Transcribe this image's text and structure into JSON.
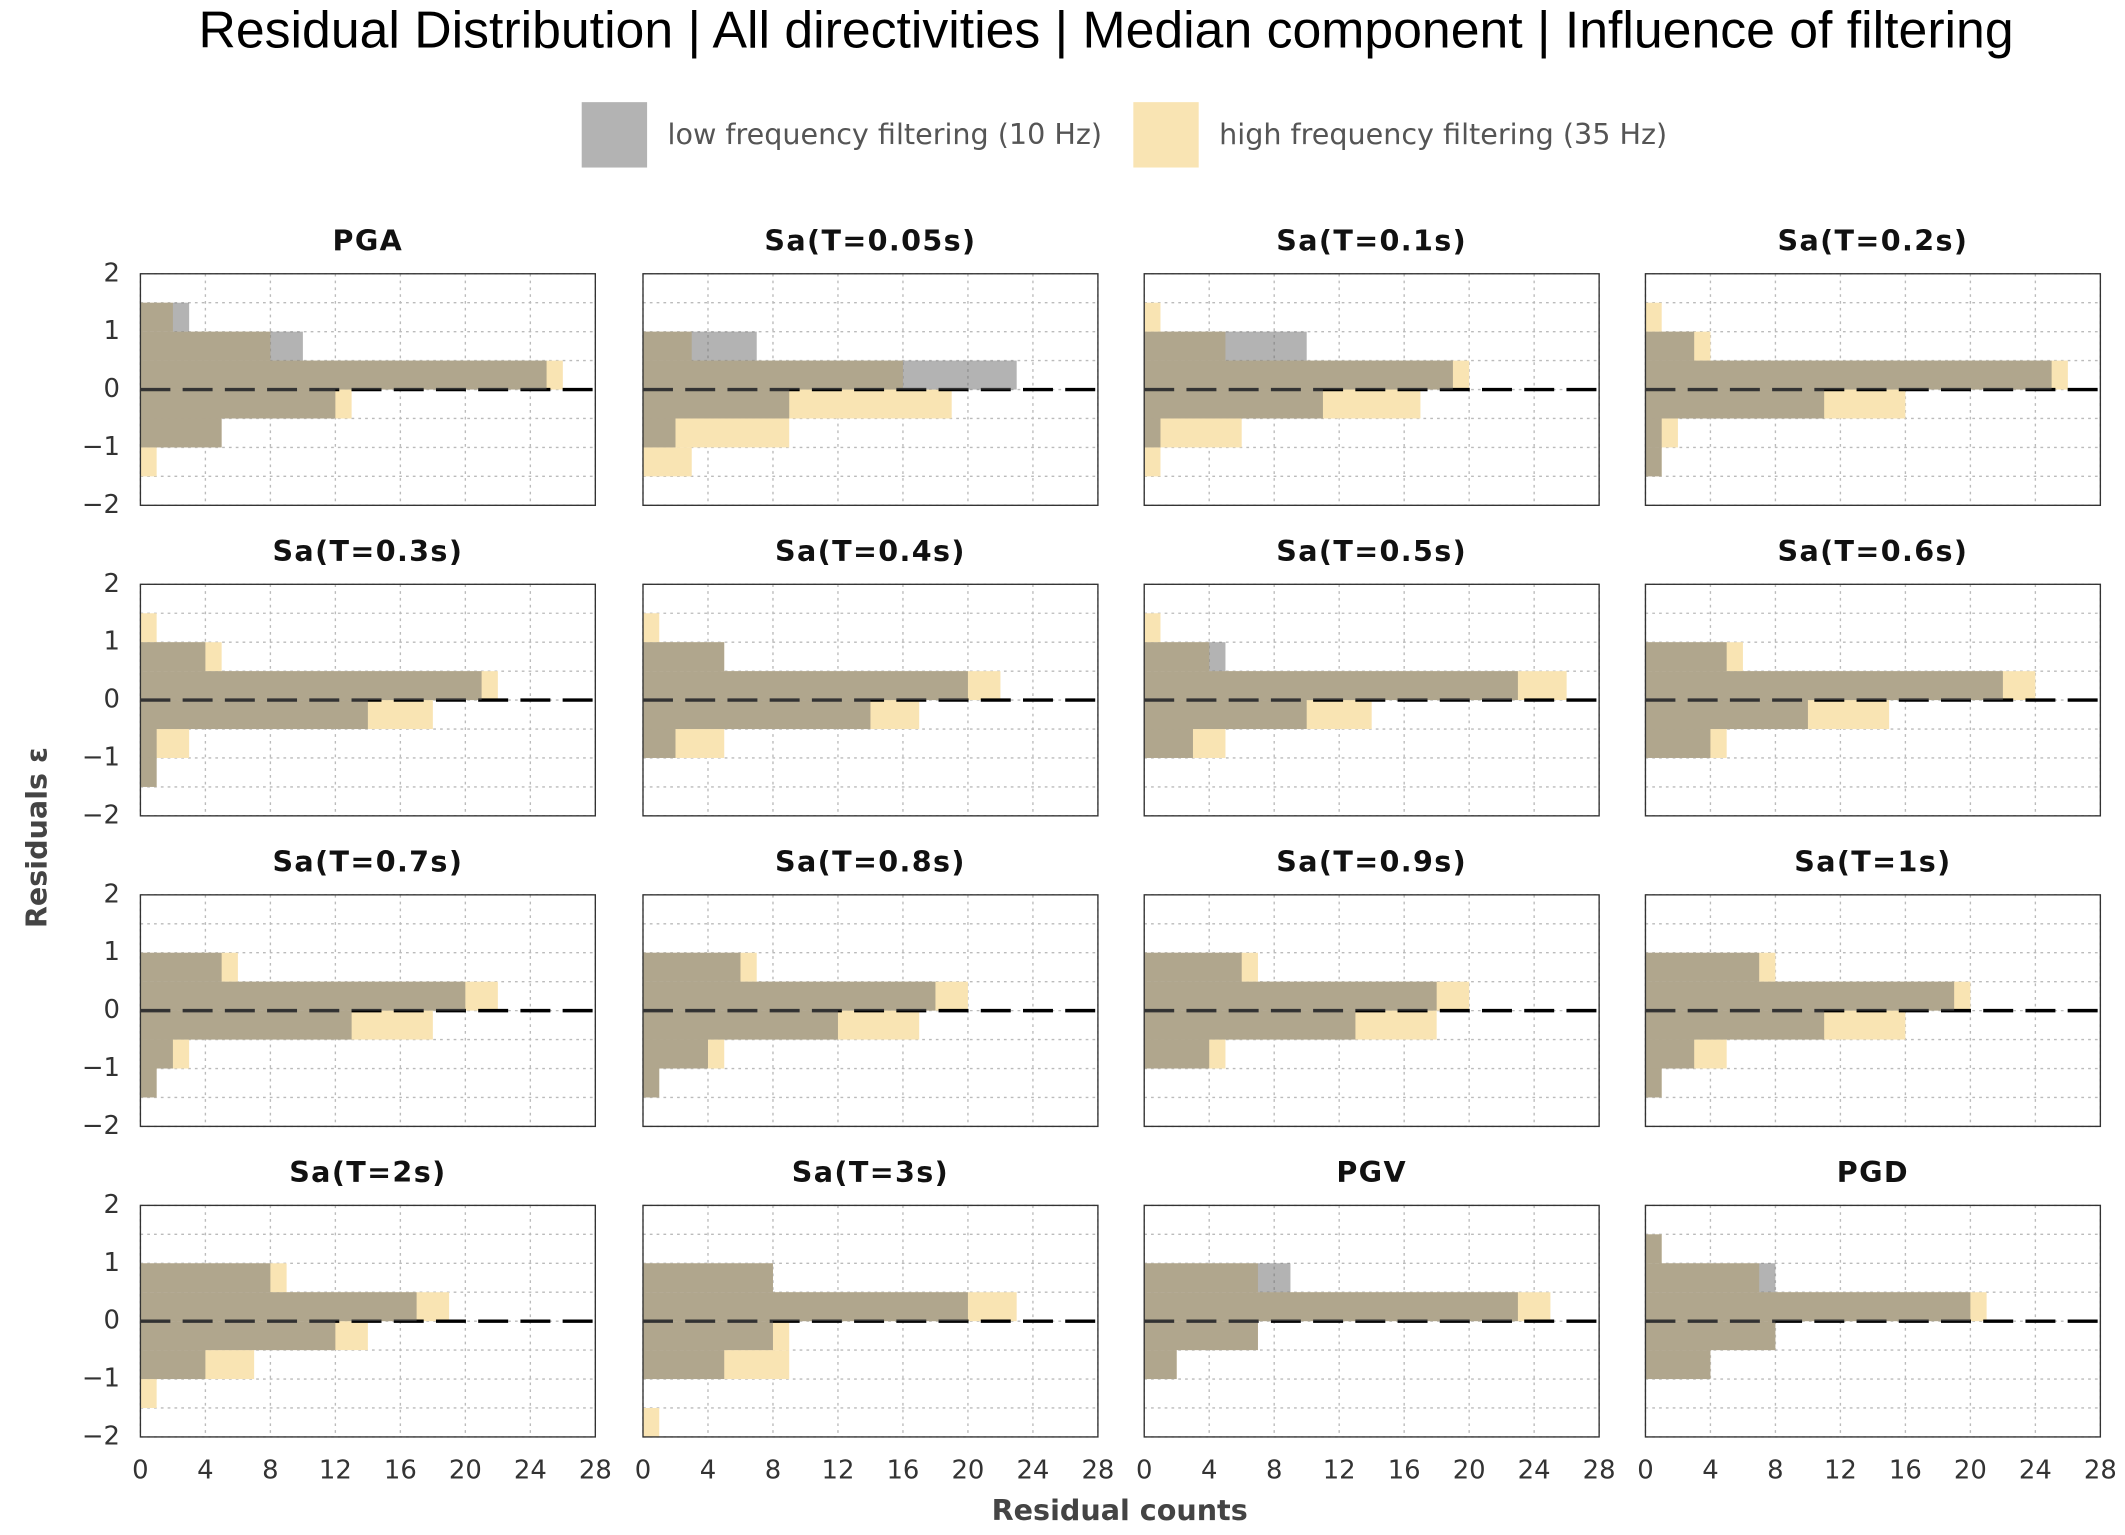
{
  "chart_data": {
    "type": "bar",
    "orientation": "horizontal",
    "title": "Residual Distribution | All directivities | Median component | Influence of filtering",
    "x_label": "Residual counts",
    "y_label": "Residuals  ε",
    "series": [
      {
        "name": "low frequency filtering (10 Hz)",
        "color": "#676767",
        "opacity": 0.5
      },
      {
        "name": "high frequency filtering (35 Hz)",
        "color": "#f9e4b3",
        "opacity": 1
      }
    ],
    "bins": [
      -2,
      -1.5,
      -1,
      -0.5,
      0,
      0.5,
      1,
      1.5,
      2
    ],
    "xlim": [
      0,
      28
    ],
    "xticks": [
      0,
      4,
      8,
      12,
      16,
      20,
      24,
      28
    ],
    "ylim": [
      -2,
      2
    ],
    "yticks": [
      {
        "value": 2,
        "label": "2"
      },
      {
        "value": 1,
        "label": "1"
      },
      {
        "value": 0,
        "label": "0"
      },
      {
        "value": -1,
        "label": "−1"
      },
      {
        "value": -2,
        "label": "−2"
      }
    ],
    "reference_line": 0,
    "grid": true,
    "panels": [
      {
        "title": "PGA",
        "series": [
          {
            "values": [
              0,
              0,
              5,
              12,
              25,
              10,
              3,
              0
            ]
          },
          {
            "values": [
              0,
              1,
              5,
              13,
              26,
              8,
              2,
              0
            ]
          }
        ]
      },
      {
        "title": "Sa(T=0.05s)",
        "series": [
          {
            "values": [
              0,
              0,
              2,
              9,
              23,
              7,
              0,
              0
            ]
          },
          {
            "values": [
              0,
              3,
              9,
              19,
              16,
              3,
              0,
              0
            ]
          }
        ]
      },
      {
        "title": "Sa(T=0.1s)",
        "series": [
          {
            "values": [
              0,
              0,
              1,
              11,
              19,
              10,
              0,
              0
            ]
          },
          {
            "values": [
              0,
              1,
              6,
              17,
              20,
              5,
              1,
              0
            ]
          }
        ]
      },
      {
        "title": "Sa(T=0.2s)",
        "series": [
          {
            "values": [
              0,
              1,
              1,
              11,
              25,
              3,
              0,
              0
            ]
          },
          {
            "values": [
              0,
              1,
              2,
              16,
              26,
              4,
              1,
              0
            ]
          }
        ]
      },
      {
        "title": "Sa(T=0.3s)",
        "series": [
          {
            "values": [
              0,
              1,
              1,
              14,
              21,
              4,
              0,
              0
            ]
          },
          {
            "values": [
              0,
              1,
              3,
              18,
              22,
              5,
              1,
              0
            ]
          }
        ]
      },
      {
        "title": "Sa(T=0.4s)",
        "series": [
          {
            "values": [
              0,
              0,
              2,
              14,
              20,
              5,
              0,
              0
            ]
          },
          {
            "values": [
              0,
              0,
              5,
              17,
              22,
              5,
              1,
              0
            ]
          }
        ]
      },
      {
        "title": "Sa(T=0.5s)",
        "series": [
          {
            "values": [
              0,
              0,
              3,
              10,
              23,
              5,
              0,
              0
            ]
          },
          {
            "values": [
              0,
              0,
              5,
              14,
              26,
              4,
              1,
              0
            ]
          }
        ]
      },
      {
        "title": "Sa(T=0.6s)",
        "series": [
          {
            "values": [
              0,
              0,
              4,
              10,
              22,
              5,
              0,
              0
            ]
          },
          {
            "values": [
              0,
              0,
              5,
              15,
              24,
              6,
              0,
              0
            ]
          }
        ]
      },
      {
        "title": "Sa(T=0.7s)",
        "series": [
          {
            "values": [
              0,
              1,
              2,
              13,
              20,
              5,
              0,
              0
            ]
          },
          {
            "values": [
              0,
              1,
              3,
              18,
              22,
              6,
              0,
              0
            ]
          }
        ]
      },
      {
        "title": "Sa(T=0.8s)",
        "series": [
          {
            "values": [
              0,
              1,
              4,
              12,
              18,
              6,
              0,
              0
            ]
          },
          {
            "values": [
              0,
              1,
              5,
              17,
              20,
              7,
              0,
              0
            ]
          }
        ]
      },
      {
        "title": "Sa(T=0.9s)",
        "series": [
          {
            "values": [
              0,
              0,
              4,
              13,
              18,
              6,
              0,
              0
            ]
          },
          {
            "values": [
              0,
              0,
              5,
              18,
              20,
              7,
              0,
              0
            ]
          }
        ]
      },
      {
        "title": "Sa(T=1s)",
        "series": [
          {
            "values": [
              0,
              1,
              3,
              11,
              19,
              7,
              0,
              0
            ]
          },
          {
            "values": [
              0,
              1,
              5,
              16,
              20,
              8,
              0,
              0
            ]
          }
        ]
      },
      {
        "title": "Sa(T=2s)",
        "series": [
          {
            "values": [
              0,
              0,
              4,
              12,
              17,
              8,
              0,
              0
            ]
          },
          {
            "values": [
              0,
              1,
              7,
              14,
              19,
              9,
              0,
              0
            ]
          }
        ]
      },
      {
        "title": "Sa(T=3s)",
        "series": [
          {
            "values": [
              0,
              0,
              5,
              8,
              20,
              8,
              0,
              0
            ]
          },
          {
            "values": [
              1,
              0,
              9,
              9,
              23,
              8,
              0,
              0
            ]
          }
        ]
      },
      {
        "title": "PGV",
        "series": [
          {
            "values": [
              0,
              0,
              2,
              7,
              23,
              9,
              0,
              0
            ]
          },
          {
            "values": [
              0,
              0,
              2,
              7,
              25,
              7,
              0,
              0
            ]
          }
        ]
      },
      {
        "title": "PGD",
        "series": [
          {
            "values": [
              0,
              0,
              4,
              8,
              20,
              8,
              1,
              0
            ]
          },
          {
            "values": [
              0,
              0,
              4,
              8,
              21,
              7,
              1,
              0
            ]
          }
        ]
      }
    ]
  }
}
